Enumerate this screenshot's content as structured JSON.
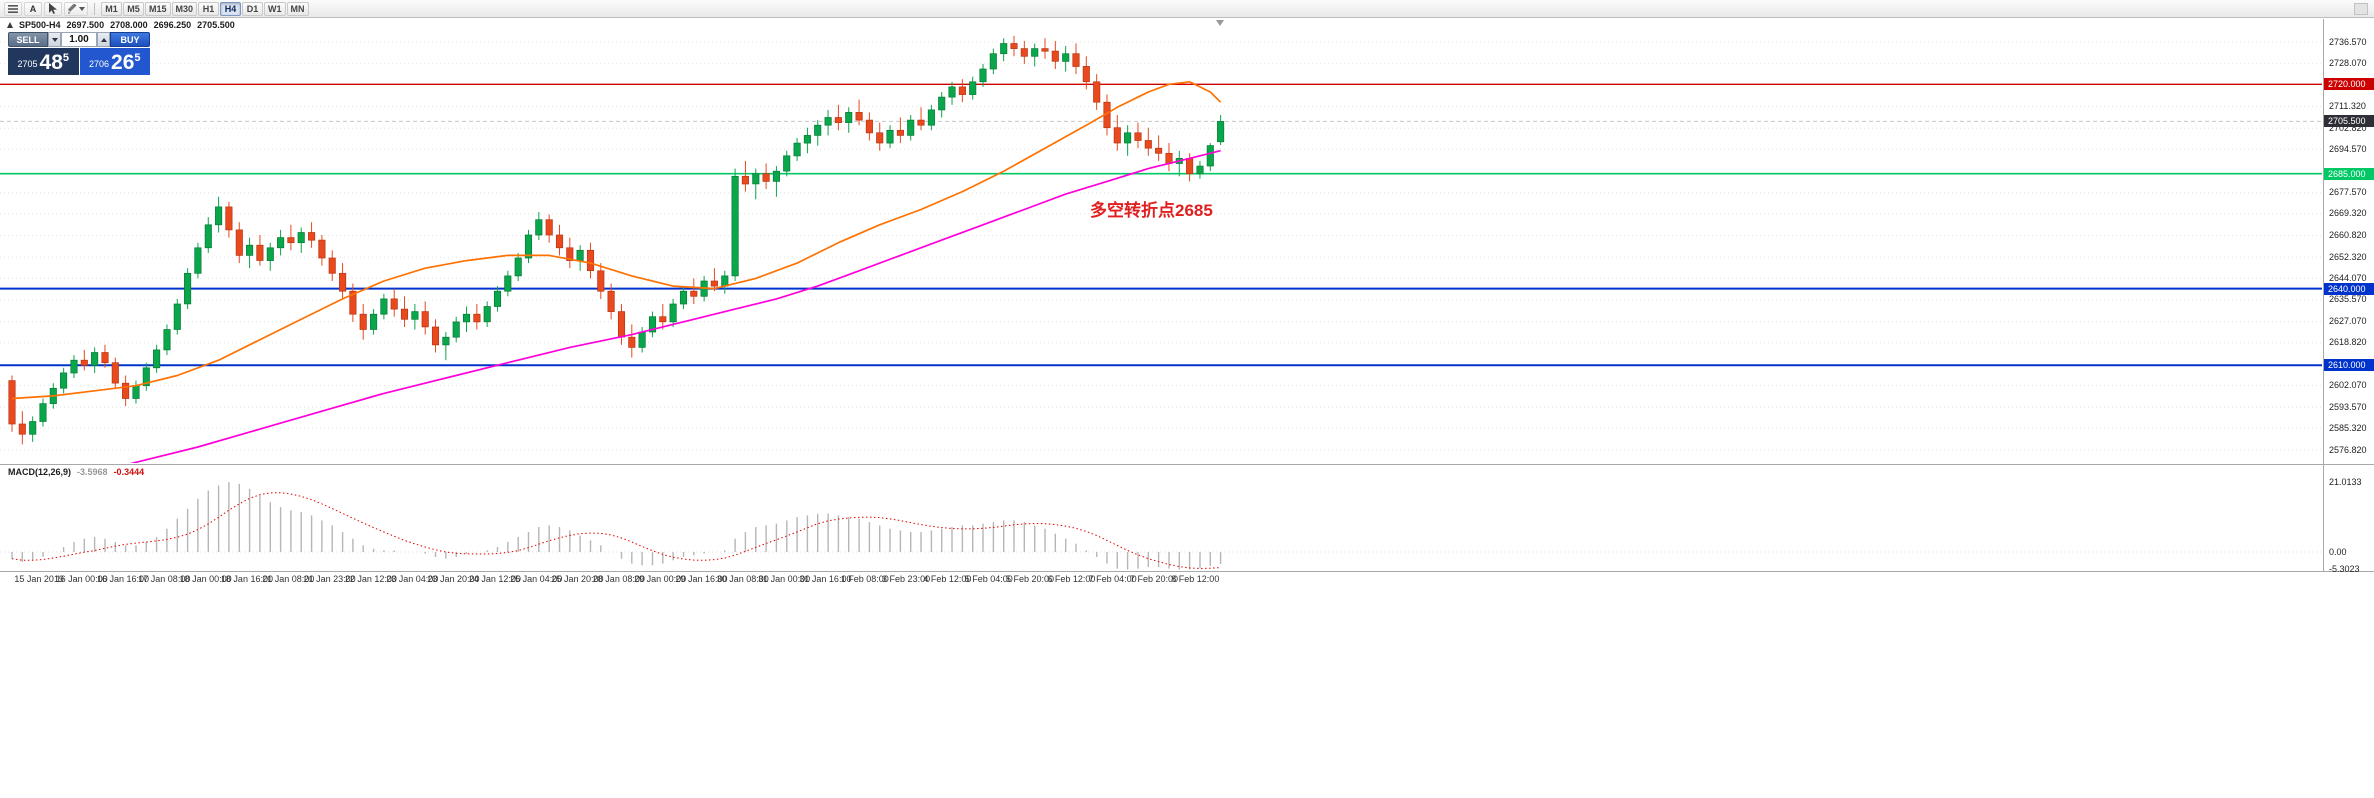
{
  "toolbar": {
    "auto_label": "A",
    "timeframes": [
      {
        "label": "M1",
        "active": false
      },
      {
        "label": "M5",
        "active": false
      },
      {
        "label": "M15",
        "active": false
      },
      {
        "label": "M30",
        "active": false
      },
      {
        "label": "H1",
        "active": false
      },
      {
        "label": "H4",
        "active": true
      },
      {
        "label": "D1",
        "active": false
      },
      {
        "label": "W1",
        "active": false
      },
      {
        "label": "MN",
        "active": false
      }
    ]
  },
  "header": {
    "symbol": "SP500-H4",
    "open": "2697.500",
    "high": "2708.000",
    "low": "2696.250",
    "close": "2705.500"
  },
  "trade_panel": {
    "sell_label": "SELL",
    "buy_label": "BUY",
    "lot_value": "1.00",
    "sell_price_prefix": "2705",
    "sell_price_big": "48",
    "sell_price_sup": "5",
    "buy_price_prefix": "2706",
    "buy_price_big": "26",
    "buy_price_sup": "5"
  },
  "annotation": {
    "text": "多空转折点2685"
  },
  "chart": {
    "price_axis": {
      "ticks": [
        2736.57,
        2728.07,
        2711.32,
        2702.82,
        2694.57,
        2677.57,
        2669.32,
        2660.82,
        2652.32,
        2644.07,
        2635.57,
        2627.07,
        2618.82,
        2602.07,
        2593.57,
        2585.32,
        2576.82
      ]
    },
    "levels": [
      {
        "label": "2720.000",
        "price": 2720.0,
        "color": "#cc0000",
        "width": 1.4
      },
      {
        "label": "2685.000",
        "price": 2685.0,
        "color": "#00c865",
        "width": 1.6
      },
      {
        "label": "2640.000",
        "price": 2640.0,
        "color": "#0033cc",
        "width": 2
      },
      {
        "label": "2610.000",
        "price": 2610.0,
        "color": "#0033cc",
        "width": 2
      }
    ],
    "current_price": {
      "label": "2705.500",
      "price": 2705.5,
      "color": "#2e2e36"
    }
  },
  "chart_data": {
    "type": "candlestick",
    "symbol": "SP500",
    "timeframe": "H4",
    "ylim": [
      2576.82,
      2736.57
    ],
    "ohlc_current": {
      "open": 2697.5,
      "high": 2708.0,
      "low": 2696.25,
      "close": 2705.5
    },
    "candles": [
      [
        2604,
        2606,
        2584,
        2587
      ],
      [
        2587,
        2592,
        2579,
        2583
      ],
      [
        2583,
        2590,
        2580,
        2588
      ],
      [
        2588,
        2597,
        2586,
        2595
      ],
      [
        2595,
        2603,
        2593,
        2601
      ],
      [
        2601,
        2609,
        2599,
        2607
      ],
      [
        2607,
        2614,
        2605,
        2612
      ],
      [
        2612,
        2616,
        2608,
        2610
      ],
      [
        2610,
        2617,
        2607,
        2615
      ],
      [
        2615,
        2618,
        2609,
        2611
      ],
      [
        2611,
        2613,
        2601,
        2603
      ],
      [
        2603,
        2606,
        2594,
        2597
      ],
      [
        2597,
        2604,
        2595,
        2602
      ],
      [
        2602,
        2611,
        2600,
        2609
      ],
      [
        2609,
        2618,
        2607,
        2616
      ],
      [
        2616,
        2626,
        2614,
        2624
      ],
      [
        2624,
        2636,
        2622,
        2634
      ],
      [
        2634,
        2648,
        2632,
        2646
      ],
      [
        2646,
        2658,
        2644,
        2656
      ],
      [
        2656,
        2668,
        2654,
        2665
      ],
      [
        2665,
        2676,
        2662,
        2672
      ],
      [
        2672,
        2674,
        2660,
        2663
      ],
      [
        2663,
        2666,
        2650,
        2653
      ],
      [
        2653,
        2660,
        2648,
        2657
      ],
      [
        2657,
        2661,
        2649,
        2651
      ],
      [
        2651,
        2658,
        2647,
        2656
      ],
      [
        2656,
        2663,
        2653,
        2660
      ],
      [
        2660,
        2665,
        2655,
        2658
      ],
      [
        2658,
        2664,
        2654,
        2662
      ],
      [
        2662,
        2666,
        2656,
        2659
      ],
      [
        2659,
        2661,
        2649,
        2652
      ],
      [
        2652,
        2655,
        2643,
        2646
      ],
      [
        2646,
        2650,
        2636,
        2639
      ],
      [
        2639,
        2642,
        2627,
        2630
      ],
      [
        2630,
        2634,
        2620,
        2624
      ],
      [
        2624,
        2632,
        2622,
        2630
      ],
      [
        2630,
        2638,
        2628,
        2636
      ],
      [
        2636,
        2640,
        2629,
        2632
      ],
      [
        2632,
        2637,
        2625,
        2628
      ],
      [
        2628,
        2634,
        2624,
        2631
      ],
      [
        2631,
        2635,
        2622,
        2625
      ],
      [
        2625,
        2628,
        2615,
        2618
      ],
      [
        2618,
        2623,
        2612,
        2621
      ],
      [
        2621,
        2629,
        2619,
        2627
      ],
      [
        2627,
        2633,
        2623,
        2630
      ],
      [
        2630,
        2634,
        2624,
        2627
      ],
      [
        2627,
        2635,
        2625,
        2633
      ],
      [
        2633,
        2641,
        2631,
        2639
      ],
      [
        2639,
        2647,
        2637,
        2645
      ],
      [
        2645,
        2654,
        2643,
        2652
      ],
      [
        2652,
        2663,
        2650,
        2661
      ],
      [
        2661,
        2670,
        2659,
        2667
      ],
      [
        2667,
        2669,
        2658,
        2661
      ],
      [
        2661,
        2665,
        2653,
        2656
      ],
      [
        2656,
        2660,
        2648,
        2651
      ],
      [
        2651,
        2657,
        2647,
        2655
      ],
      [
        2655,
        2658,
        2644,
        2647
      ],
      [
        2647,
        2650,
        2636,
        2639
      ],
      [
        2639,
        2642,
        2628,
        2631
      ],
      [
        2631,
        2634,
        2618,
        2621
      ],
      [
        2621,
        2626,
        2613,
        2617
      ],
      [
        2617,
        2625,
        2615,
        2623
      ],
      [
        2623,
        2631,
        2621,
        2629
      ],
      [
        2629,
        2634,
        2624,
        2627
      ],
      [
        2627,
        2636,
        2625,
        2634
      ],
      [
        2634,
        2641,
        2632,
        2639
      ],
      [
        2639,
        2644,
        2634,
        2637
      ],
      [
        2637,
        2645,
        2635,
        2643
      ],
      [
        2643,
        2648,
        2639,
        2641
      ],
      [
        2641,
        2647,
        2638,
        2645
      ],
      [
        2645,
        2687,
        2643,
        2684
      ],
      [
        2684,
        2690,
        2678,
        2681
      ],
      [
        2681,
        2687,
        2675,
        2685
      ],
      [
        2685,
        2689,
        2679,
        2682
      ],
      [
        2682,
        2688,
        2676,
        2686
      ],
      [
        2686,
        2694,
        2684,
        2692
      ],
      [
        2692,
        2699,
        2690,
        2697
      ],
      [
        2697,
        2703,
        2693,
        2700
      ],
      [
        2700,
        2706,
        2696,
        2704
      ],
      [
        2704,
        2710,
        2700,
        2707
      ],
      [
        2707,
        2712,
        2702,
        2705
      ],
      [
        2705,
        2711,
        2701,
        2709
      ],
      [
        2709,
        2714,
        2704,
        2706
      ],
      [
        2706,
        2709,
        2698,
        2701
      ],
      [
        2701,
        2705,
        2694,
        2697
      ],
      [
        2697,
        2704,
        2695,
        2702
      ],
      [
        2702,
        2707,
        2697,
        2700
      ],
      [
        2700,
        2708,
        2698,
        2706
      ],
      [
        2706,
        2711,
        2702,
        2704
      ],
      [
        2704,
        2712,
        2702,
        2710
      ],
      [
        2710,
        2717,
        2707,
        2715
      ],
      [
        2715,
        2721,
        2712,
        2719
      ],
      [
        2719,
        2722,
        2713,
        2716
      ],
      [
        2716,
        2723,
        2714,
        2721
      ],
      [
        2721,
        2728,
        2719,
        2726
      ],
      [
        2726,
        2734,
        2724,
        2732
      ],
      [
        2732,
        2738,
        2729,
        2736
      ],
      [
        2736,
        2739,
        2731,
        2734
      ],
      [
        2734,
        2737,
        2728,
        2731
      ],
      [
        2731,
        2736,
        2727,
        2734
      ],
      [
        2734,
        2738,
        2730,
        2733
      ],
      [
        2733,
        2737,
        2726,
        2729
      ],
      [
        2729,
        2735,
        2725,
        2732
      ],
      [
        2732,
        2736,
        2724,
        2727
      ],
      [
        2727,
        2731,
        2718,
        2721
      ],
      [
        2721,
        2724,
        2710,
        2713
      ],
      [
        2713,
        2716,
        2700,
        2703
      ],
      [
        2703,
        2708,
        2694,
        2697
      ],
      [
        2697,
        2704,
        2692,
        2701
      ],
      [
        2701,
        2705,
        2695,
        2698
      ],
      [
        2698,
        2703,
        2692,
        2695
      ],
      [
        2695,
        2700,
        2690,
        2693
      ],
      [
        2693,
        2697,
        2686,
        2689
      ],
      [
        2689,
        2694,
        2684,
        2691
      ],
      [
        2691,
        2693,
        2682,
        2685
      ],
      [
        2685,
        2690,
        2683,
        2688
      ],
      [
        2688,
        2697,
        2686,
        2696
      ],
      [
        2697.5,
        2708,
        2696.25,
        2705.5
      ]
    ],
    "moving_averages": [
      {
        "name": "ma-fast-orange",
        "color": "#ff7100",
        "points": [
          [
            0,
            2597
          ],
          [
            4,
            2598
          ],
          [
            8,
            2600
          ],
          [
            12,
            2602
          ],
          [
            16,
            2606
          ],
          [
            20,
            2612
          ],
          [
            24,
            2620
          ],
          [
            28,
            2628
          ],
          [
            32,
            2636
          ],
          [
            36,
            2643
          ],
          [
            40,
            2648
          ],
          [
            44,
            2651
          ],
          [
            48,
            2653
          ],
          [
            52,
            2653
          ],
          [
            56,
            2650
          ],
          [
            60,
            2645
          ],
          [
            64,
            2641
          ],
          [
            68,
            2640
          ],
          [
            72,
            2644
          ],
          [
            76,
            2650
          ],
          [
            80,
            2658
          ],
          [
            84,
            2665
          ],
          [
            88,
            2671
          ],
          [
            92,
            2678
          ],
          [
            96,
            2686
          ],
          [
            100,
            2695
          ],
          [
            104,
            2704
          ],
          [
            107,
            2711
          ],
          [
            110,
            2717
          ],
          [
            112,
            2720
          ],
          [
            114,
            2721
          ],
          [
            116,
            2717
          ],
          [
            117,
            2713
          ]
        ]
      },
      {
        "name": "ma-slow-magenta",
        "color": "#ff00dc",
        "points": [
          [
            0,
            2560
          ],
          [
            6,
            2566
          ],
          [
            12,
            2572
          ],
          [
            18,
            2578
          ],
          [
            24,
            2585
          ],
          [
            30,
            2592
          ],
          [
            36,
            2599
          ],
          [
            42,
            2605
          ],
          [
            48,
            2611
          ],
          [
            54,
            2617
          ],
          [
            60,
            2622
          ],
          [
            66,
            2628
          ],
          [
            70,
            2632
          ],
          [
            74,
            2636
          ],
          [
            78,
            2641
          ],
          [
            82,
            2647
          ],
          [
            86,
            2653
          ],
          [
            90,
            2659
          ],
          [
            94,
            2665
          ],
          [
            98,
            2671
          ],
          [
            102,
            2677
          ],
          [
            106,
            2682
          ],
          [
            110,
            2687
          ],
          [
            113,
            2690
          ],
          [
            115,
            2692
          ],
          [
            117,
            2694
          ]
        ]
      }
    ],
    "time_labels": [
      "15 Jan 2019",
      "16 Jan 00:00",
      "16 Jan 16:00",
      "17 Jan 08:00",
      "18 Jan 00:00",
      "18 Jan 16:00",
      "21 Jan 08:00",
      "21 Jan 23:00",
      "22 Jan 12:00",
      "23 Jan 04:00",
      "23 Jan 20:00",
      "24 Jan 12:00",
      "25 Jan 04:00",
      "25 Jan 20:00",
      "28 Jan 08:00",
      "29 Jan 00:00",
      "29 Jan 16:00",
      "30 Jan 08:00",
      "31 Jan 00:00",
      "31 Jan 16:00",
      "1 Feb 08:00",
      "3 Feb 23:00",
      "4 Feb 12:00",
      "5 Feb 04:00",
      "5 Feb 20:00",
      "6 Feb 12:00",
      "7 Feb 04:00",
      "7 Feb 20:00",
      "8 Feb 12:00"
    ]
  },
  "macd": {
    "label": "MACD(12,26,9)",
    "main_value": "-3.5968",
    "signal_value": "-0.3444",
    "histogram_color": "#b6b6b6",
    "signal_color": "#e00000",
    "signal_period": 9,
    "scale": [
      {
        "label": "21.0133",
        "value": 21.0133
      },
      {
        "label": "0.00",
        "value": 0
      },
      {
        "label": "-5.3023",
        "value": -5.3023
      }
    ],
    "histogram": [
      -2,
      -3,
      -2.5,
      -1.5,
      0,
      1.5,
      3,
      4,
      4.5,
      4,
      3,
      2,
      2,
      3,
      4.5,
      7,
      10,
      13,
      16,
      18.5,
      20,
      21,
      20.5,
      19,
      17,
      15,
      13.5,
      12.5,
      12,
      11,
      9.5,
      8,
      6,
      4,
      2,
      1,
      0.5,
      0.5,
      0,
      0,
      -0.5,
      -1.5,
      -2,
      -1.5,
      -0.5,
      0,
      0.5,
      1.5,
      3,
      4.5,
      6,
      7.5,
      8,
      7.5,
      6.5,
      5,
      3.5,
      2,
      0,
      -2,
      -3.5,
      -4,
      -4,
      -3.5,
      -2.5,
      -1.5,
      -1,
      -0.5,
      0,
      0.5,
      4,
      6,
      7.5,
      8,
      8.5,
      9.5,
      10.5,
      11,
      11.5,
      11.5,
      11,
      10.5,
      10,
      9,
      8,
      7,
      6.5,
      6,
      6,
      6.5,
      7,
      7.5,
      8,
      8,
      8.5,
      9,
      9.5,
      9.5,
      9,
      8,
      7,
      5.5,
      4,
      2.5,
      0.5,
      -1.5,
      -3.5,
      -5,
      -5.3,
      -5,
      -4.5,
      -4.5,
      -5,
      -5.3,
      -5.2,
      -4.8,
      -4.2,
      -3.6
    ]
  },
  "colors": {
    "candle_up": "#0aa64b",
    "candle_up_border": "#067a36",
    "candle_down": "#e8491f",
    "candle_down_border": "#b83511",
    "grid": "#e4e4e4",
    "current_line": "#c8c8c8"
  }
}
